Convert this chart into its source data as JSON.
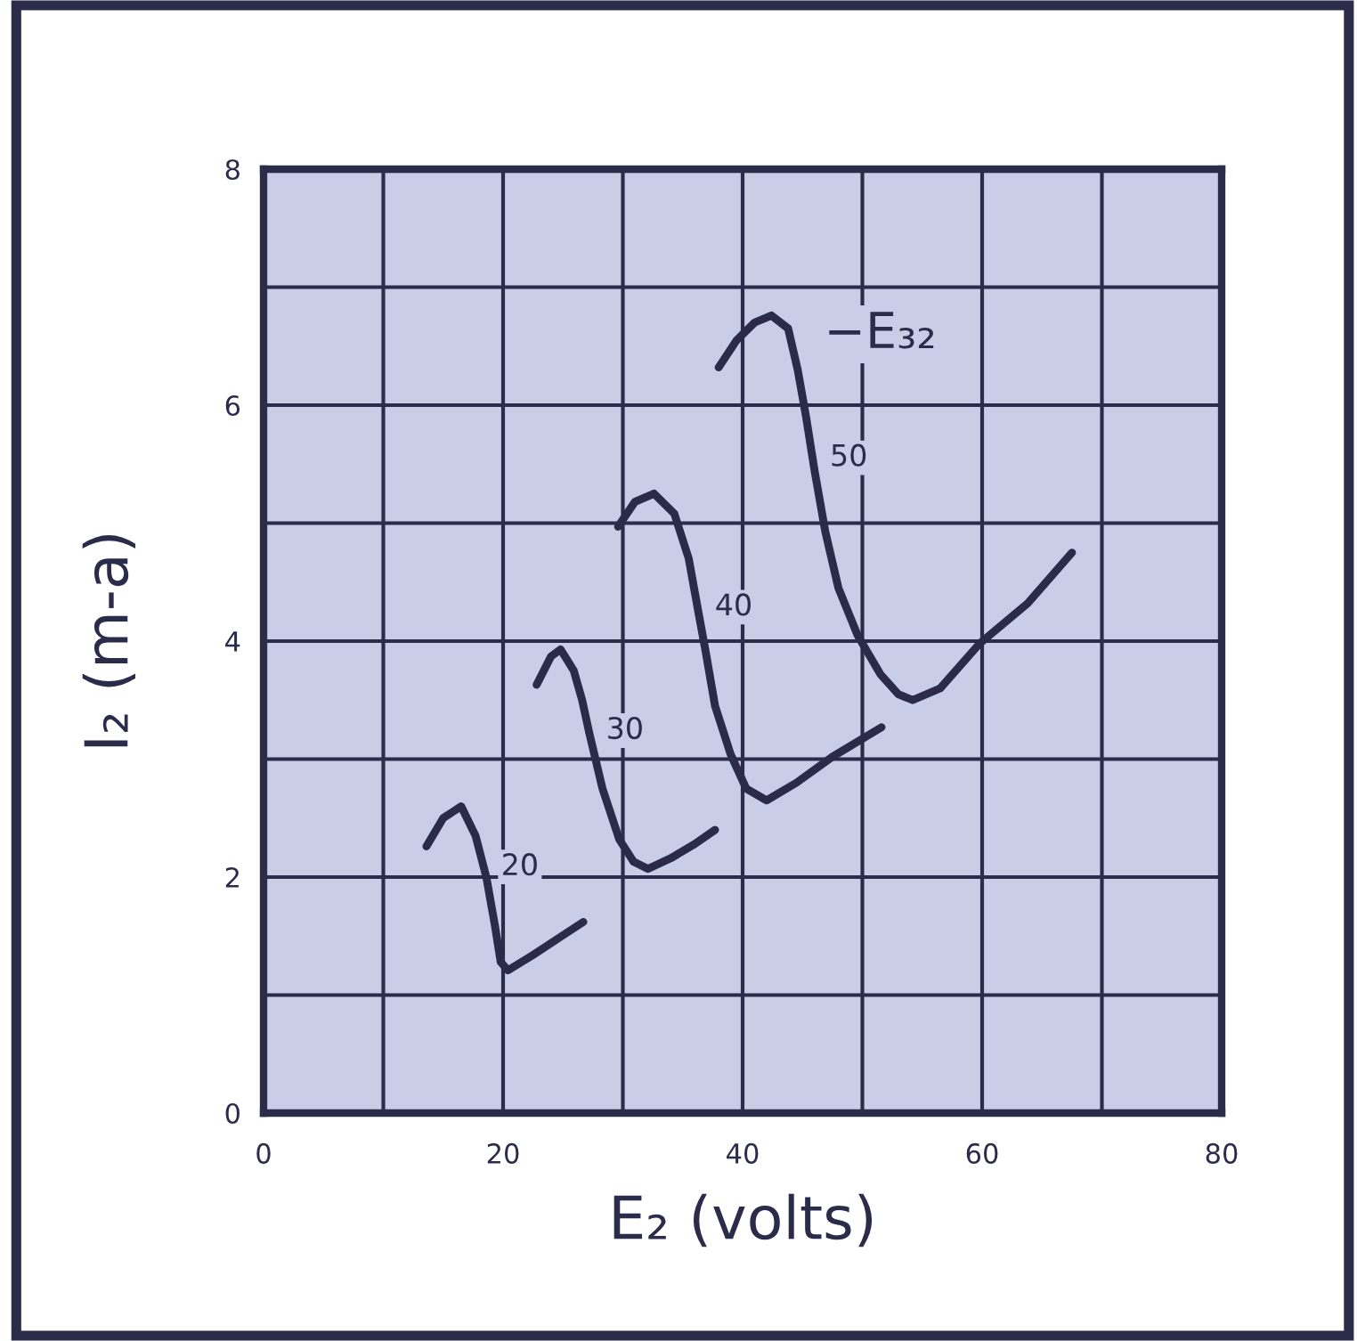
{
  "chart_data": {
    "type": "line",
    "xlabel": "E₂ (volts)",
    "ylabel": "I₂ (m-a)",
    "annotations": [
      "−E₃₂"
    ],
    "xlim": [
      0,
      80
    ],
    "ylim": [
      0,
      8
    ],
    "xticks": [
      0,
      {
        "value": 10,
        "label": null
      },
      20,
      {
        "value": 30,
        "label": null
      },
      40,
      {
        "value": 50,
        "label": null
      },
      60,
      {
        "value": 70,
        "label": null
      },
      80
    ],
    "yticks": [
      0,
      {
        "value": 1,
        "label": null
      },
      2,
      {
        "value": 3,
        "label": null
      },
      4,
      {
        "value": 5,
        "label": null
      },
      6,
      {
        "value": 7,
        "label": null
      },
      8
    ],
    "grid": true,
    "line_style": "solid",
    "series": [
      {
        "name": "20",
        "color": "#2b2b48",
        "x": [
          13.6,
          15.0,
          16.5,
          17.7,
          18.6,
          19.3,
          19.8,
          20.4,
          22.5,
          24.6,
          26.7
        ],
        "values": [
          2.26,
          2.5,
          2.6,
          2.35,
          2.0,
          1.6,
          1.28,
          1.21,
          1.34,
          1.48,
          1.62
        ]
      },
      {
        "name": "30",
        "color": "#2b2b48",
        "x": [
          22.8,
          24.0,
          24.8,
          25.9,
          26.6,
          27.2,
          28.3,
          29.7,
          30.9,
          32.1,
          34.0,
          36.0,
          37.7
        ],
        "values": [
          3.63,
          3.87,
          3.93,
          3.75,
          3.5,
          3.22,
          2.75,
          2.32,
          2.13,
          2.07,
          2.16,
          2.28,
          2.4
        ]
      },
      {
        "name": "40",
        "color": "#2b2b48",
        "x": [
          29.6,
          31.0,
          32.6,
          34.3,
          35.5,
          36.3,
          36.9,
          37.7,
          39.0,
          40.3,
          42.0,
          44.5,
          47.5,
          51.6
        ],
        "values": [
          4.97,
          5.18,
          5.25,
          5.08,
          4.7,
          4.25,
          3.92,
          3.45,
          3.04,
          2.75,
          2.65,
          2.8,
          3.02,
          3.27
        ]
      },
      {
        "name": "50",
        "color": "#2b2b48",
        "x": [
          38.0,
          39.5,
          41.0,
          42.4,
          43.8,
          44.6,
          45.3,
          46.0,
          46.9,
          48.0,
          49.6,
          51.5,
          53.0,
          54.2,
          56.5,
          59.8,
          63.8,
          67.5
        ],
        "values": [
          6.32,
          6.55,
          6.7,
          6.76,
          6.65,
          6.3,
          5.9,
          5.45,
          4.93,
          4.45,
          4.05,
          3.72,
          3.55,
          3.5,
          3.6,
          3.98,
          4.32,
          4.75
        ]
      }
    ]
  }
}
